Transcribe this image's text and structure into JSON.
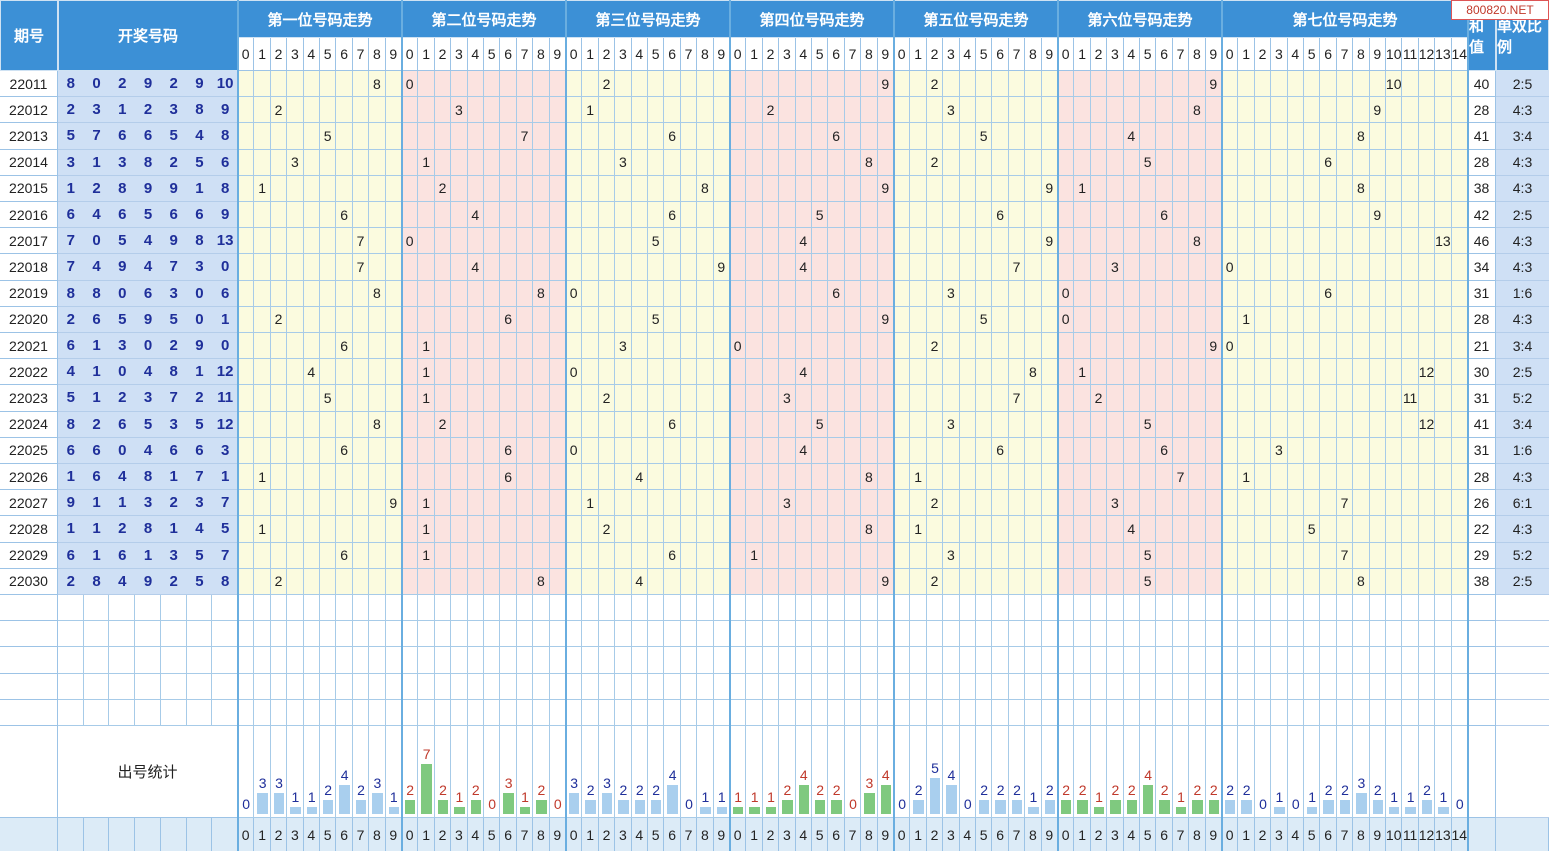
{
  "watermark": "800820.NET",
  "headers": {
    "issue": "期号",
    "draw": "开奖号码",
    "sum": "和值",
    "ratio": "单双比例",
    "stats": "出号统计"
  },
  "groups": [
    {
      "title": "第一位号码走势",
      "digits": [
        "0",
        "1",
        "2",
        "3",
        "4",
        "5",
        "6",
        "7",
        "8",
        "9"
      ]
    },
    {
      "title": "第二位号码走势",
      "digits": [
        "0",
        "1",
        "2",
        "3",
        "4",
        "5",
        "6",
        "7",
        "8",
        "9"
      ]
    },
    {
      "title": "第三位号码走势",
      "digits": [
        "0",
        "1",
        "2",
        "3",
        "4",
        "5",
        "6",
        "7",
        "8",
        "9"
      ]
    },
    {
      "title": "第四位号码走势",
      "digits": [
        "0",
        "1",
        "2",
        "3",
        "4",
        "5",
        "6",
        "7",
        "8",
        "9"
      ]
    },
    {
      "title": "第五位号码走势",
      "digits": [
        "0",
        "1",
        "2",
        "3",
        "4",
        "5",
        "6",
        "7",
        "8",
        "9"
      ]
    },
    {
      "title": "第六位号码走势",
      "digits": [
        "0",
        "1",
        "2",
        "3",
        "4",
        "5",
        "6",
        "7",
        "8",
        "9"
      ]
    },
    {
      "title": "第七位号码走势",
      "digits": [
        "0",
        "1",
        "2",
        "3",
        "4",
        "5",
        "6",
        "7",
        "8",
        "9",
        "10",
        "11",
        "12",
        "13",
        "14"
      ]
    }
  ],
  "rows": [
    {
      "issue": "22011",
      "nums": [
        8,
        0,
        2,
        9,
        2,
        9,
        10
      ],
      "sum": "40",
      "ratio": "2:5"
    },
    {
      "issue": "22012",
      "nums": [
        2,
        3,
        1,
        2,
        3,
        8,
        9
      ],
      "sum": "28",
      "ratio": "4:3"
    },
    {
      "issue": "22013",
      "nums": [
        5,
        7,
        6,
        6,
        5,
        4,
        8
      ],
      "sum": "41",
      "ratio": "3:4"
    },
    {
      "issue": "22014",
      "nums": [
        3,
        1,
        3,
        8,
        2,
        5,
        6
      ],
      "sum": "28",
      "ratio": "4:3"
    },
    {
      "issue": "22015",
      "nums": [
        1,
        2,
        8,
        9,
        9,
        1,
        8
      ],
      "sum": "38",
      "ratio": "4:3"
    },
    {
      "issue": "22016",
      "nums": [
        6,
        4,
        6,
        5,
        6,
        6,
        9
      ],
      "sum": "42",
      "ratio": "2:5"
    },
    {
      "issue": "22017",
      "nums": [
        7,
        0,
        5,
        4,
        9,
        8,
        13
      ],
      "sum": "46",
      "ratio": "4:3"
    },
    {
      "issue": "22018",
      "nums": [
        7,
        4,
        9,
        4,
        7,
        3,
        0
      ],
      "sum": "34",
      "ratio": "4:3"
    },
    {
      "issue": "22019",
      "nums": [
        8,
        8,
        0,
        6,
        3,
        0,
        6
      ],
      "sum": "31",
      "ratio": "1:6"
    },
    {
      "issue": "22020",
      "nums": [
        2,
        6,
        5,
        9,
        5,
        0,
        1
      ],
      "sum": "28",
      "ratio": "4:3"
    },
    {
      "issue": "22021",
      "nums": [
        6,
        1,
        3,
        0,
        2,
        9,
        0
      ],
      "sum": "21",
      "ratio": "3:4"
    },
    {
      "issue": "22022",
      "nums": [
        4,
        1,
        0,
        4,
        8,
        1,
        12
      ],
      "sum": "30",
      "ratio": "2:5"
    },
    {
      "issue": "22023",
      "nums": [
        5,
        1,
        2,
        3,
        7,
        2,
        11
      ],
      "sum": "31",
      "ratio": "5:2"
    },
    {
      "issue": "22024",
      "nums": [
        8,
        2,
        6,
        5,
        3,
        5,
        12
      ],
      "sum": "41",
      "ratio": "3:4"
    },
    {
      "issue": "22025",
      "nums": [
        6,
        6,
        0,
        4,
        6,
        6,
        3
      ],
      "sum": "31",
      "ratio": "1:6"
    },
    {
      "issue": "22026",
      "nums": [
        1,
        6,
        4,
        8,
        1,
        7,
        1
      ],
      "sum": "28",
      "ratio": "4:3"
    },
    {
      "issue": "22027",
      "nums": [
        9,
        1,
        1,
        3,
        2,
        3,
        7
      ],
      "sum": "26",
      "ratio": "6:1"
    },
    {
      "issue": "22028",
      "nums": [
        1,
        1,
        2,
        8,
        1,
        4,
        5
      ],
      "sum": "22",
      "ratio": "4:3"
    },
    {
      "issue": "22029",
      "nums": [
        6,
        1,
        6,
        1,
        3,
        5,
        7
      ],
      "sum": "29",
      "ratio": "5:2"
    },
    {
      "issue": "22030",
      "nums": [
        2,
        8,
        4,
        9,
        2,
        5,
        8
      ],
      "sum": "38",
      "ratio": "2:5"
    }
  ],
  "stats": [
    [
      0,
      3,
      3,
      1,
      1,
      2,
      4,
      2,
      3,
      1
    ],
    [
      2,
      7,
      2,
      1,
      2,
      0,
      3,
      1,
      2,
      0
    ],
    [
      3,
      2,
      3,
      2,
      2,
      2,
      4,
      0,
      1,
      1
    ],
    [
      1,
      1,
      1,
      2,
      4,
      2,
      2,
      0,
      3,
      4
    ],
    [
      0,
      2,
      5,
      4,
      0,
      2,
      2,
      2,
      1,
      2
    ],
    [
      2,
      2,
      1,
      2,
      2,
      4,
      2,
      1,
      2,
      2
    ],
    [
      2,
      2,
      0,
      1,
      0,
      1,
      2,
      2,
      3,
      2,
      1,
      1,
      2,
      1,
      0
    ]
  ],
  "colors": {
    "header_blue": "#3c90d6",
    "draw_blue": "#cfe0f5",
    "yellow_zone": "#fbfbdf",
    "pink_zone": "#fbe3e0",
    "bar_blue": "#a9cfee",
    "bar_green": "#7fc97f",
    "value_blue": "#1f2f9a",
    "value_red": "#c0392b"
  }
}
